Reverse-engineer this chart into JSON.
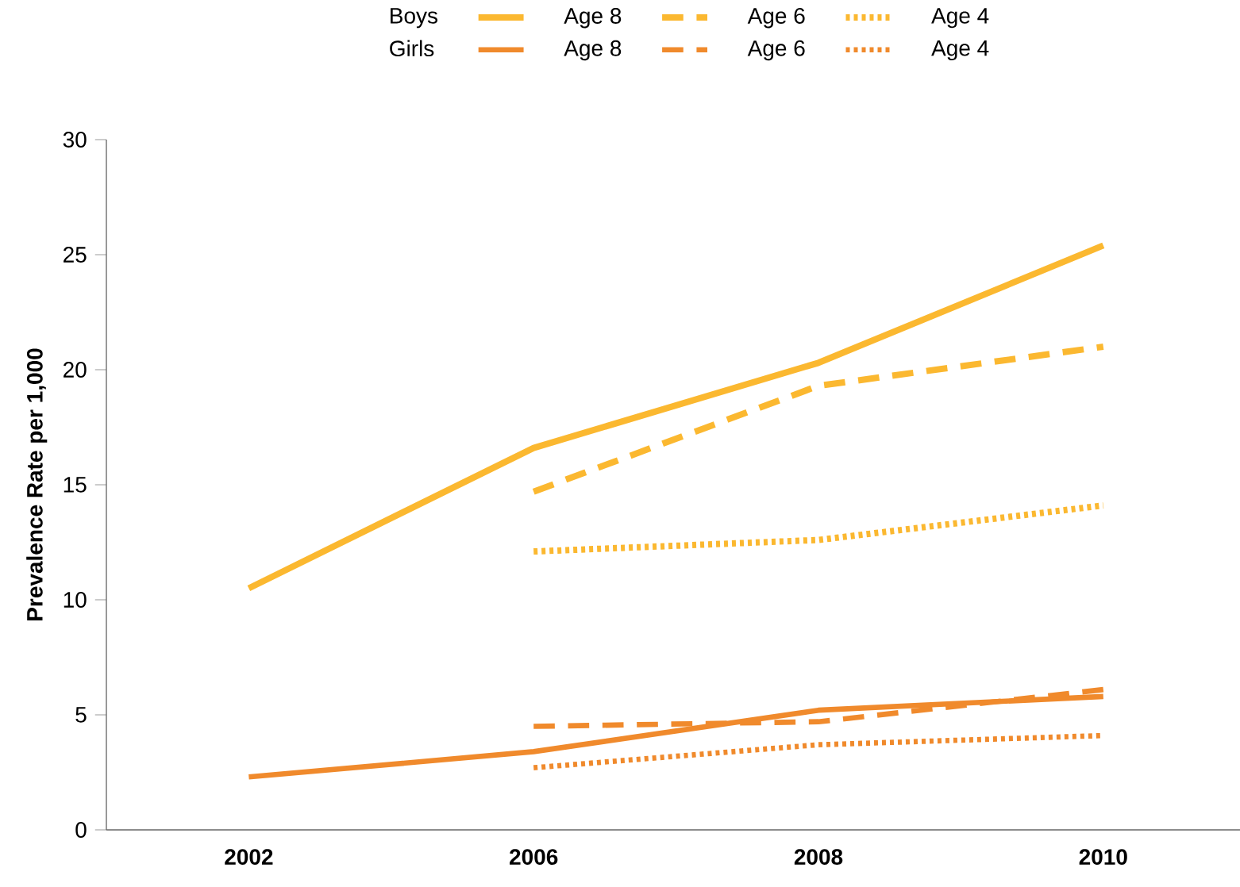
{
  "chart_data": {
    "type": "line",
    "ylabel": "Prevalence Rate per 1,000",
    "categories": [
      "2002",
      "2006",
      "2008",
      "2010"
    ],
    "ylim": [
      0,
      30
    ],
    "yticks": [
      0,
      5,
      10,
      15,
      20,
      25,
      30
    ],
    "legend": "top",
    "grid": false,
    "annotations": [
      "Boys",
      "Girls"
    ],
    "series": [
      {
        "name": "Age 8",
        "color": "#fbb830",
        "line_style": "solid",
        "values": [
          10.5,
          16.6,
          20.3,
          25.4
        ]
      },
      {
        "name": "Age 6",
        "color": "#fbb830",
        "line_style": "dashed",
        "values": [
          null,
          14.7,
          19.3,
          21.0
        ]
      },
      {
        "name": "Age 4",
        "color": "#fbb830",
        "line_style": "dotted",
        "values": [
          null,
          12.1,
          12.6,
          14.1
        ]
      },
      {
        "name": "Age 8",
        "color": "#f08a2c",
        "line_style": "solid",
        "values": [
          2.3,
          3.4,
          5.2,
          5.8
        ]
      },
      {
        "name": "Age 6",
        "color": "#f08a2c",
        "line_style": "dashed",
        "values": [
          null,
          4.5,
          4.7,
          6.1
        ]
      },
      {
        "name": "Age 4",
        "color": "#f08a2c",
        "line_style": "dotted",
        "values": [
          null,
          2.7,
          3.7,
          4.1
        ]
      }
    ]
  }
}
